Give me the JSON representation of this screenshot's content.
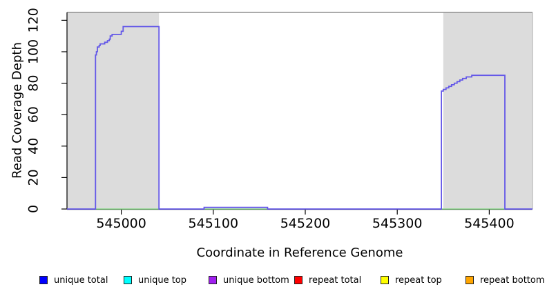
{
  "figure": {
    "background": "#ffffff",
    "plot_fill": "#ffffff"
  },
  "chart_data": {
    "type": "area",
    "title": "",
    "xlabel": "Coordinate in Reference Genome",
    "ylabel": "Read Coverage Depth",
    "xlim": [
      544941,
      545447
    ],
    "ylim": [
      0,
      125
    ],
    "x_ticks": [
      545000,
      545100,
      545200,
      545300,
      545400
    ],
    "y_ticks": [
      0,
      20,
      40,
      60,
      80,
      100,
      120
    ],
    "grid": false,
    "frame_top_color": "#8f8f8f",
    "axis_color": "#000000",
    "shaded_regions": {
      "color": "#dcdcdc",
      "edge_color": "#ababab",
      "ranges": [
        [
          544941,
          545041
        ],
        [
          545350,
          545447
        ]
      ]
    },
    "series": [
      {
        "name": "unique coverage profile",
        "style": "step",
        "color": "#6357e8",
        "points": [
          [
            544941,
            0
          ],
          [
            544972,
            98
          ],
          [
            544973,
            100
          ],
          [
            544974,
            103
          ],
          [
            544976,
            104
          ],
          [
            544977,
            105
          ],
          [
            544982,
            106
          ],
          [
            544985,
            107
          ],
          [
            544987,
            108
          ],
          [
            544988,
            110
          ],
          [
            544990,
            111
          ],
          [
            545000,
            113
          ],
          [
            545002,
            116
          ],
          [
            545041,
            0
          ],
          [
            545090,
            1
          ],
          [
            545159,
            0
          ],
          [
            545348,
            75
          ],
          [
            545350,
            76
          ],
          [
            545353,
            77
          ],
          [
            545356,
            78
          ],
          [
            545359,
            79
          ],
          [
            545362,
            80
          ],
          [
            545365,
            81
          ],
          [
            545368,
            82
          ],
          [
            545371,
            83
          ],
          [
            545375,
            84
          ],
          [
            545381,
            85
          ],
          [
            545417,
            0
          ],
          [
            545447,
            0
          ]
        ]
      },
      {
        "name": "zero-depth baseline under covered blocks",
        "style": "segments",
        "color": "#85d685",
        "y": 0,
        "ranges": [
          [
            544972,
            545041
          ],
          [
            545090,
            545159
          ],
          [
            545348,
            545417
          ]
        ]
      }
    ],
    "legend": {
      "position": "bottom",
      "items": [
        {
          "label": "unique total",
          "color": "#0000ff"
        },
        {
          "label": "unique top",
          "color": "#00ffff"
        },
        {
          "label": "unique bottom",
          "color": "#a020f0"
        },
        {
          "label": "repeat total",
          "color": "#ff0000"
        },
        {
          "label": "repeat top",
          "color": "#ffff00"
        },
        {
          "label": "repeat bottom",
          "color": "#ffa500"
        }
      ]
    }
  }
}
